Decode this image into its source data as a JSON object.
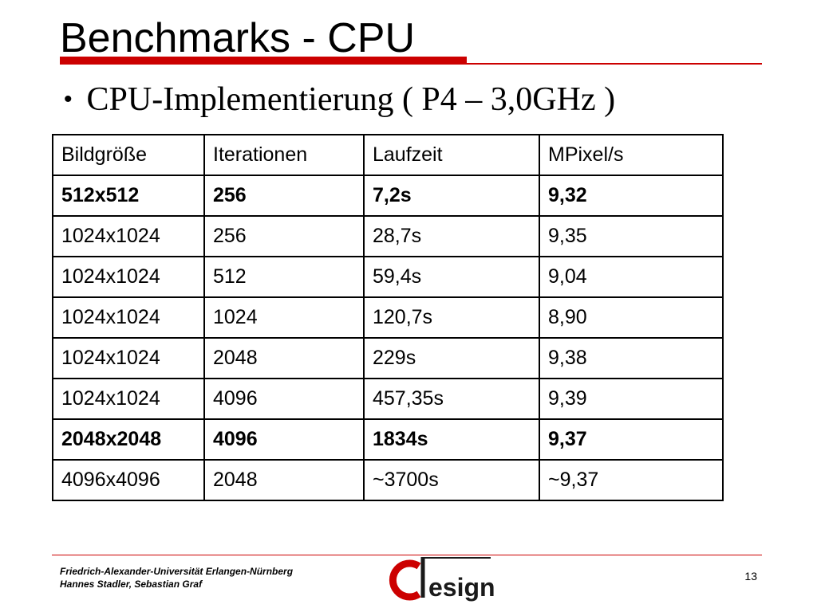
{
  "slide": {
    "title": "Benchmarks - CPU",
    "bullet_marker": "•",
    "bullet": "CPU-Implementierung ( P4 – 3,0GHz )"
  },
  "table": {
    "headers": [
      "Bildgröße",
      "Iterationen",
      "Laufzeit",
      "MPixel/s"
    ],
    "rows": [
      {
        "cells": [
          "512x512",
          "256",
          "7,2s",
          "9,32"
        ],
        "bold": true
      },
      {
        "cells": [
          "1024x1024",
          "256",
          "28,7s",
          "9,35"
        ],
        "bold": false
      },
      {
        "cells": [
          "1024x1024",
          "512",
          "59,4s",
          "9,04"
        ],
        "bold": false
      },
      {
        "cells": [
          "1024x1024",
          "1024",
          "120,7s",
          "8,90"
        ],
        "bold": false
      },
      {
        "cells": [
          "1024x1024",
          "2048",
          "229s",
          "9,38"
        ],
        "bold": false
      },
      {
        "cells": [
          "1024x1024",
          "4096",
          "457,35s",
          "9,39"
        ],
        "bold": false
      },
      {
        "cells": [
          "2048x2048",
          "4096",
          "1834s",
          "9,37"
        ],
        "bold": true
      },
      {
        "cells": [
          "4096x4096",
          "2048",
          "~3700s",
          "~9,37"
        ],
        "bold": false
      }
    ]
  },
  "footer": {
    "line1": "Friedrich-Alexander-Universität Erlangen-Nürnberg",
    "line2": "Hannes Stadler, Sebastian Graf",
    "logo_text": "esign",
    "page_number": "13"
  },
  "colors": {
    "accent_red": "#cc0000",
    "text": "#000000"
  }
}
